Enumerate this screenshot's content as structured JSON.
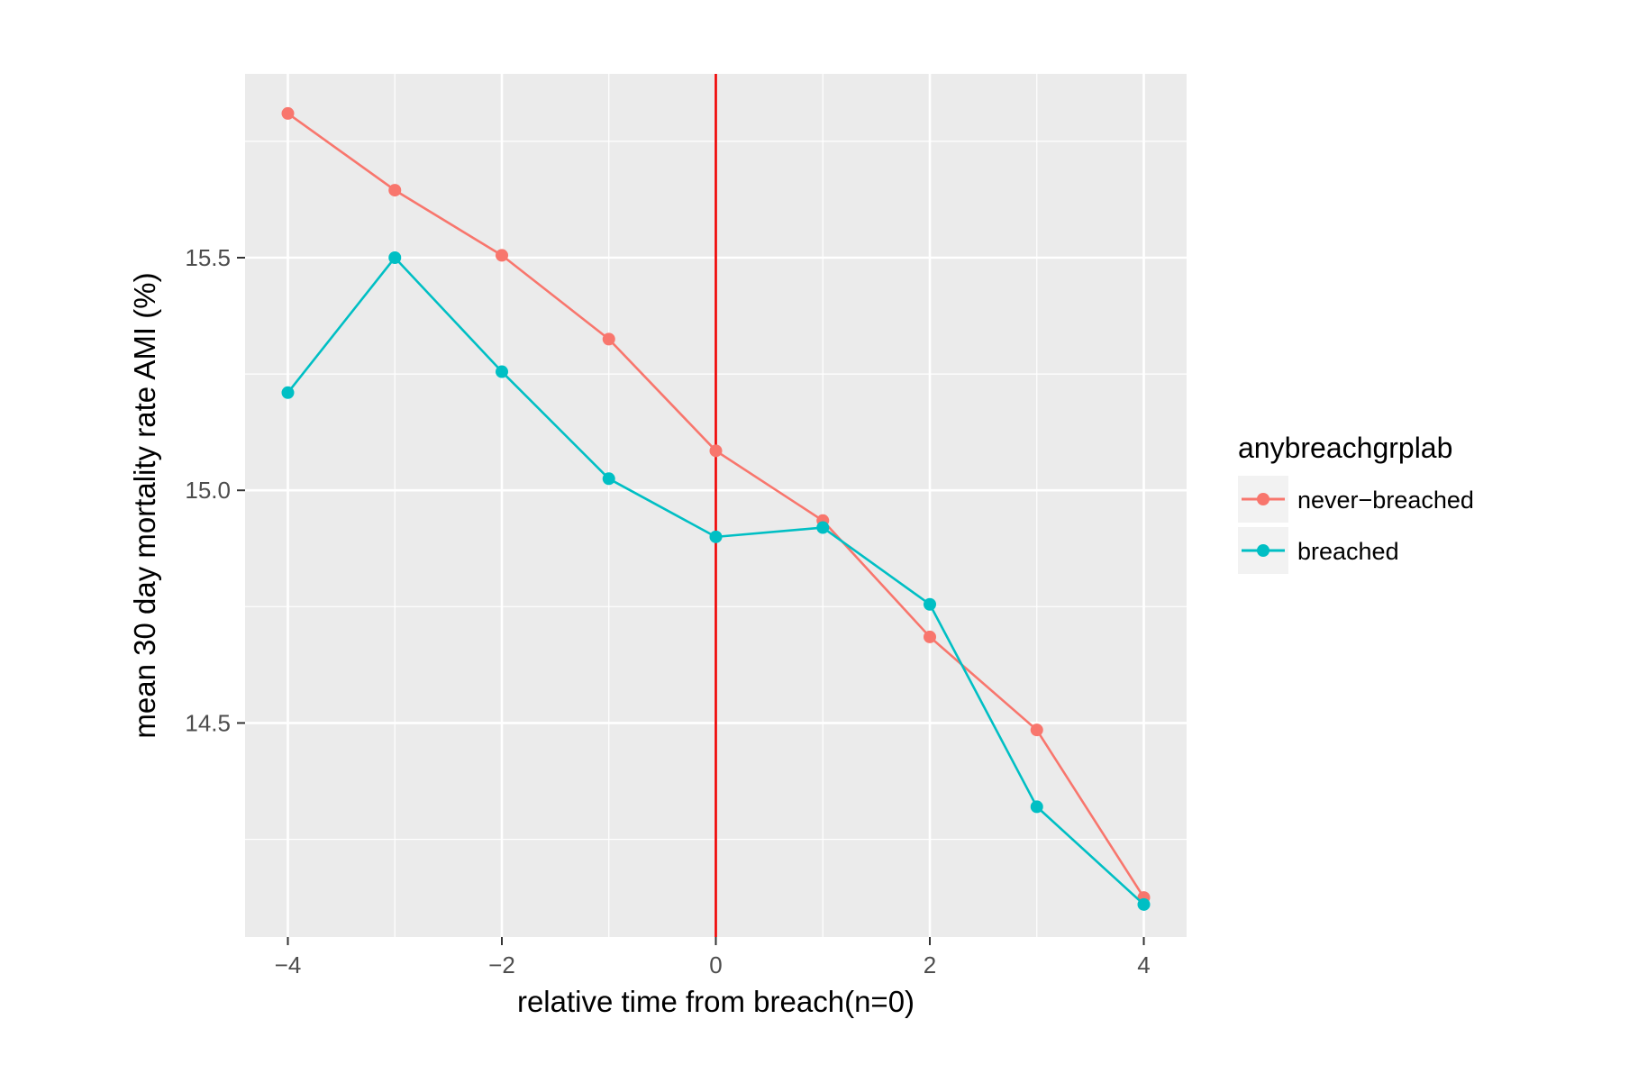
{
  "chart_data": {
    "type": "line",
    "title": "",
    "xlabel": "relative time from breach(n=0)",
    "ylabel": "mean 30 day mortality rate AMI (%)",
    "xlim": [
      -4.4,
      4.4
    ],
    "ylim": [
      14.04,
      15.895
    ],
    "x_ticks": [
      -4,
      -2,
      0,
      2,
      4
    ],
    "x_tick_labels": [
      "−4",
      "−2",
      "0",
      "2",
      "4"
    ],
    "x_minor_ticks": [
      -3,
      -1,
      1,
      3
    ],
    "y_ticks": [
      14.5,
      15.0,
      15.5
    ],
    "y_tick_labels": [
      "14.5",
      "15.0",
      "15.5"
    ],
    "y_minor_ticks": [
      14.25,
      14.75,
      15.25,
      15.75
    ],
    "x": [
      -4,
      -3,
      -2,
      -1,
      0,
      1,
      2,
      3,
      4
    ],
    "series": [
      {
        "name": "never−breached",
        "color": "#F8766D",
        "values": [
          15.81,
          15.645,
          15.505,
          15.325,
          15.085,
          14.935,
          14.685,
          14.485,
          14.125
        ]
      },
      {
        "name": "breached",
        "color": "#00BFC4",
        "values": [
          15.21,
          15.5,
          15.255,
          15.025,
          14.9,
          14.92,
          14.755,
          14.32,
          14.11
        ]
      }
    ],
    "reference_line": {
      "x": 0,
      "color": "#EE0000"
    },
    "legend": {
      "title": "anybreachgrplab",
      "position": "right"
    },
    "panel_background": "#EBEBEB",
    "grid_color": "#FFFFFF",
    "grid": true
  }
}
